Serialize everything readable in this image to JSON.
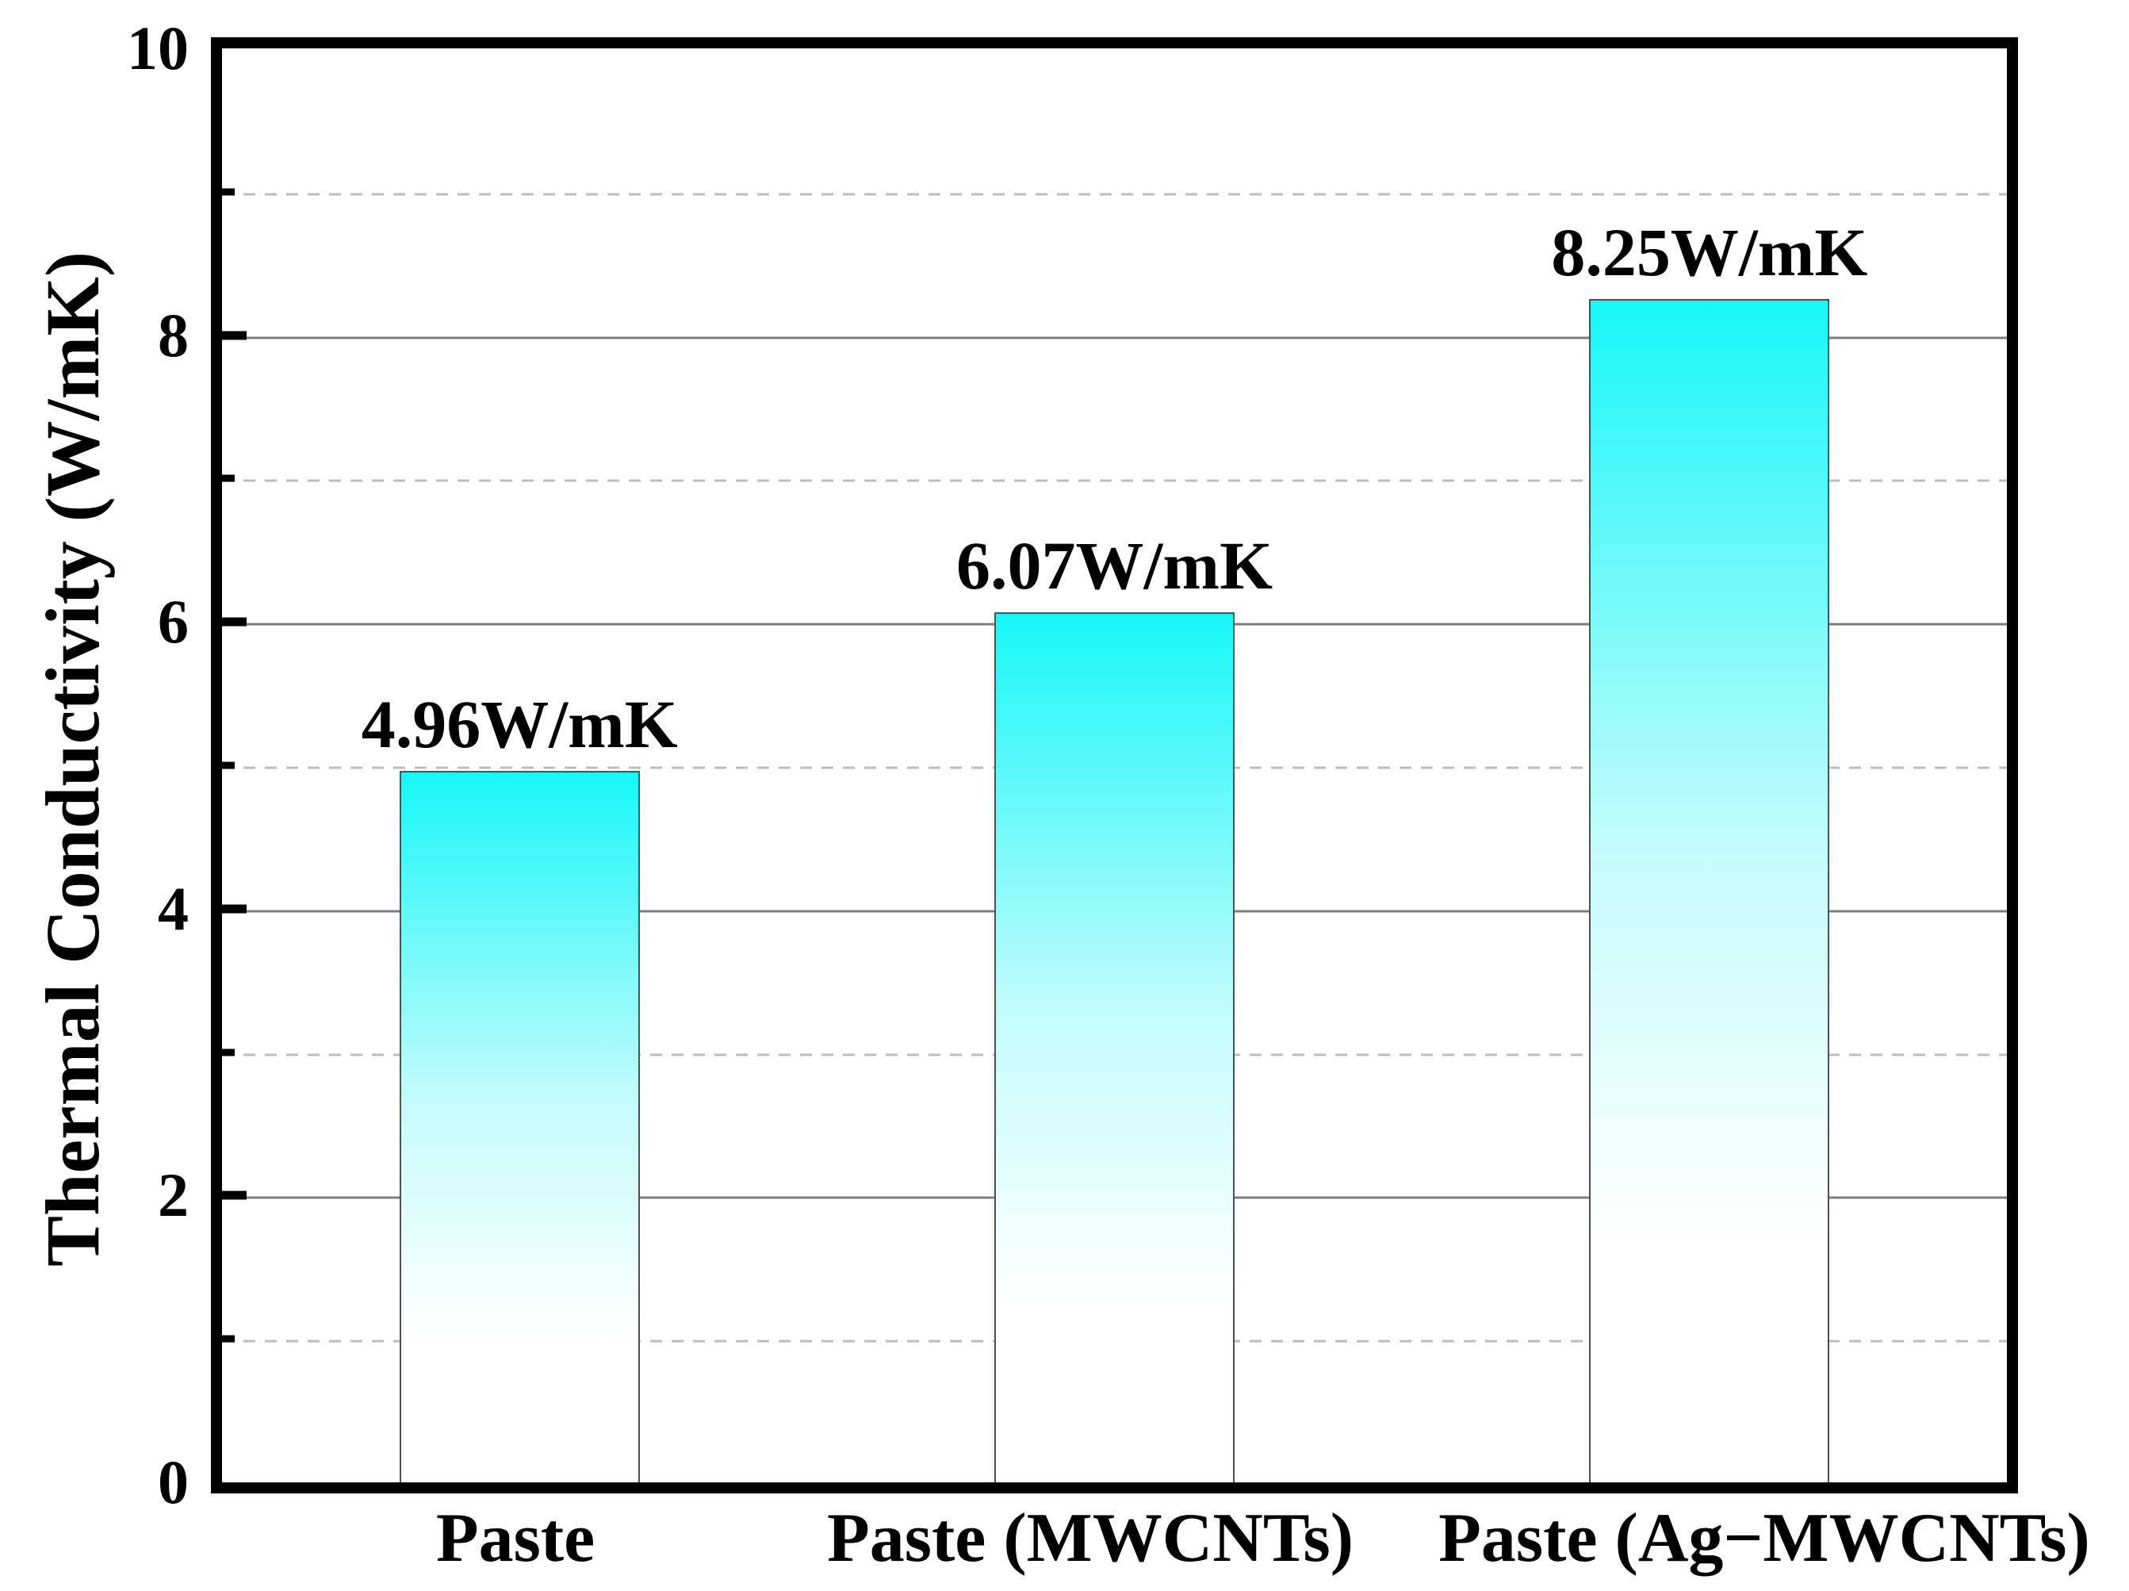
{
  "chart_data": {
    "type": "bar",
    "title": "",
    "categories": [
      "Paste",
      "Paste (MWCNTs)",
      "Paste (Ag−MWCNTs)"
    ],
    "values": [
      4.96,
      6.07,
      8.25
    ],
    "bar_labels": [
      "4.96W/mK",
      "6.07W/mK",
      "8.25W/mK"
    ],
    "xlabel": "",
    "ylabel": "Thermal Conductivity (W/mK)",
    "ylim": [
      0,
      10
    ],
    "ytick_labels": [
      "0",
      "2",
      "4",
      "6",
      "8",
      "10"
    ],
    "yticks_major": [
      2,
      4,
      6,
      8
    ],
    "yticks_minor": [
      1,
      3,
      5,
      7,
      9
    ],
    "grid": {
      "major_style": "solid",
      "minor_style": "dashed"
    },
    "legend": "none",
    "colors": {
      "bar_gradient_top": "#17f7f8",
      "bar_gradient_mid": "#c3fbfc",
      "bar_gradient_bottom": "#ffffff",
      "bar_border": "#4f4f4f",
      "gridline_major": "#7d7d7d",
      "gridline_minor": "#bdbdbd",
      "frame": "#000000",
      "text": "#000000"
    }
  }
}
